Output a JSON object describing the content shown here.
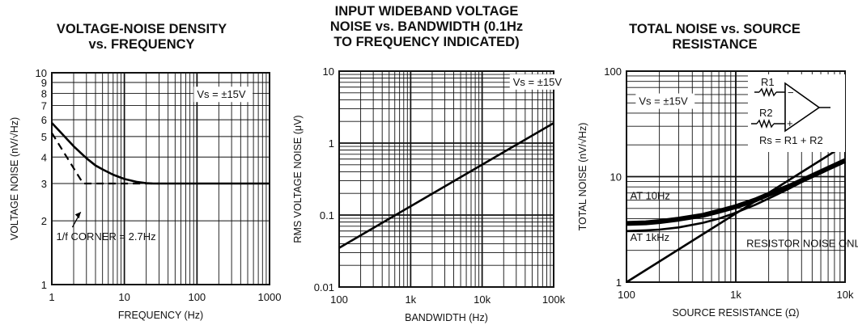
{
  "chart_data": [
    {
      "type": "line",
      "title_line1": "VOLTAGE-NOISE DENSITY",
      "title_line2": "vs. FREQUENCY",
      "title_line3": "",
      "xlabel": "FREQUENCY (Hz)",
      "ylabel": "VOLTAGE NOISE (nV/√Hz)",
      "xscale": "log",
      "yscale": "log",
      "xlim": [
        1,
        1000
      ],
      "ylim": [
        1,
        10
      ],
      "grid": true,
      "xticks": [
        {
          "v": 1,
          "label": "1"
        },
        {
          "v": 10,
          "label": "10"
        },
        {
          "v": 100,
          "label": "100"
        },
        {
          "v": 1000,
          "label": "1000"
        }
      ],
      "yticks": [
        {
          "v": 1,
          "label": "1"
        },
        {
          "v": 2,
          "label": "2"
        },
        {
          "v": 3,
          "label": "3"
        },
        {
          "v": 4,
          "label": "4"
        },
        {
          "v": 5,
          "label": "5"
        },
        {
          "v": 6,
          "label": "6"
        },
        {
          "v": 7,
          "label": "7"
        },
        {
          "v": 8,
          "label": "8"
        },
        {
          "v": 9,
          "label": "9"
        },
        {
          "v": 10,
          "label": "10"
        }
      ],
      "series": [
        {
          "style": "solid",
          "x": [
            1,
            1.5,
            2,
            3,
            4,
            5,
            7,
            10,
            15,
            20,
            25,
            30,
            50,
            100,
            1000
          ],
          "y": [
            5.8,
            5.0,
            4.5,
            3.95,
            3.65,
            3.5,
            3.3,
            3.15,
            3.05,
            3.01,
            3.0,
            3.0,
            3.0,
            3.0,
            3.0
          ]
        },
        {
          "style": "dashed",
          "x": [
            1,
            2.7,
            30
          ],
          "y": [
            5.2,
            3.0,
            3.0
          ]
        }
      ],
      "annotations": [
        {
          "text": "Vs = ±15V",
          "x": 100,
          "y": 7.6,
          "boxed": true
        },
        {
          "text": "1/f CORNER = 2.7Hz",
          "x": 1.15,
          "y": 1.62,
          "arrow_to": [
            2.5,
            2.2
          ]
        }
      ]
    },
    {
      "type": "line",
      "title_line1": "INPUT WIDEBAND VOLTAGE",
      "title_line2": "NOISE vs. BANDWIDTH (0.1Hz",
      "title_line3": "TO FREQUENCY INDICATED)",
      "xlabel": "BANDWIDTH (Hz)",
      "ylabel": "RMS VOLTAGE NOISE (μV)",
      "xscale": "log",
      "yscale": "log",
      "xlim": [
        100,
        100000
      ],
      "ylim": [
        0.01,
        10
      ],
      "grid": true,
      "xticks": [
        {
          "v": 100,
          "label": "100"
        },
        {
          "v": 1000,
          "label": "1k"
        },
        {
          "v": 10000,
          "label": "10k"
        },
        {
          "v": 100000,
          "label": "100k"
        }
      ],
      "yticks": [
        {
          "v": 0.01,
          "label": "0.01"
        },
        {
          "v": 0.1,
          "label": "0.1"
        },
        {
          "v": 1,
          "label": "1"
        },
        {
          "v": 10,
          "label": "10"
        }
      ],
      "series": [
        {
          "style": "solid",
          "x": [
            100,
            100000
          ],
          "y": [
            0.035,
            1.9
          ]
        }
      ],
      "annotations": [
        {
          "text": "Vs = ±15V",
          "x": 27000,
          "y": 6.3,
          "boxed": true
        }
      ]
    },
    {
      "type": "line",
      "title_line1": "TOTAL NOISE vs. SOURCE",
      "title_line2": "RESISTANCE",
      "title_line3": "",
      "xlabel": "SOURCE RESISTANCE (Ω)",
      "ylabel": "TOTAL NOISE (nV/√Hz)",
      "xscale": "log",
      "yscale": "log",
      "xlim": [
        100,
        10000
      ],
      "ylim": [
        1,
        100
      ],
      "grid": true,
      "xticks": [
        {
          "v": 100,
          "label": "100"
        },
        {
          "v": 1000,
          "label": "1k"
        },
        {
          "v": 10000,
          "label": "10k"
        }
      ],
      "yticks": [
        {
          "v": 1,
          "label": "1"
        },
        {
          "v": 10,
          "label": "10"
        },
        {
          "v": 100,
          "label": "100"
        }
      ],
      "series": [
        {
          "name": "AT 10Hz",
          "style": "thick",
          "x": [
            100,
            150,
            200,
            300,
            500,
            700,
            1000,
            1500,
            2000,
            3000,
            5000,
            7000,
            10000
          ],
          "y": [
            3.6,
            3.65,
            3.75,
            3.95,
            4.3,
            4.7,
            5.2,
            6.0,
            6.8,
            8.0,
            10.2,
            12.0,
            14.2
          ]
        },
        {
          "name": "AT 1kHz",
          "style": "solid",
          "x": [
            100,
            150,
            200,
            300,
            500,
            700,
            1000,
            1500,
            2000,
            3000,
            5000,
            7000,
            10000
          ],
          "y": [
            3.05,
            3.1,
            3.15,
            3.3,
            3.65,
            4.0,
            4.55,
            5.4,
            6.2,
            7.6,
            10.0,
            12.0,
            14.5
          ]
        },
        {
          "name": "RESISTOR NOISE ONLY",
          "style": "solid",
          "x": [
            100,
            10000
          ],
          "y": [
            1.0,
            20.0
          ]
        }
      ],
      "annotations": [
        {
          "text": "Vs = ±15V",
          "x": 130,
          "y": 48,
          "boxed": true
        },
        {
          "text": "AT 10Hz",
          "x": 108,
          "y": 6.1
        },
        {
          "text": "AT 1kHz",
          "x": 108,
          "y": 2.45
        },
        {
          "text": "RESISTOR NOISE ONLY",
          "x": 1250,
          "y": 2.15
        }
      ],
      "inset": {
        "r1": "R1",
        "r2": "R2",
        "rs": "Rs = R1 + R2",
        "minus": "−",
        "plus": "+"
      }
    }
  ]
}
